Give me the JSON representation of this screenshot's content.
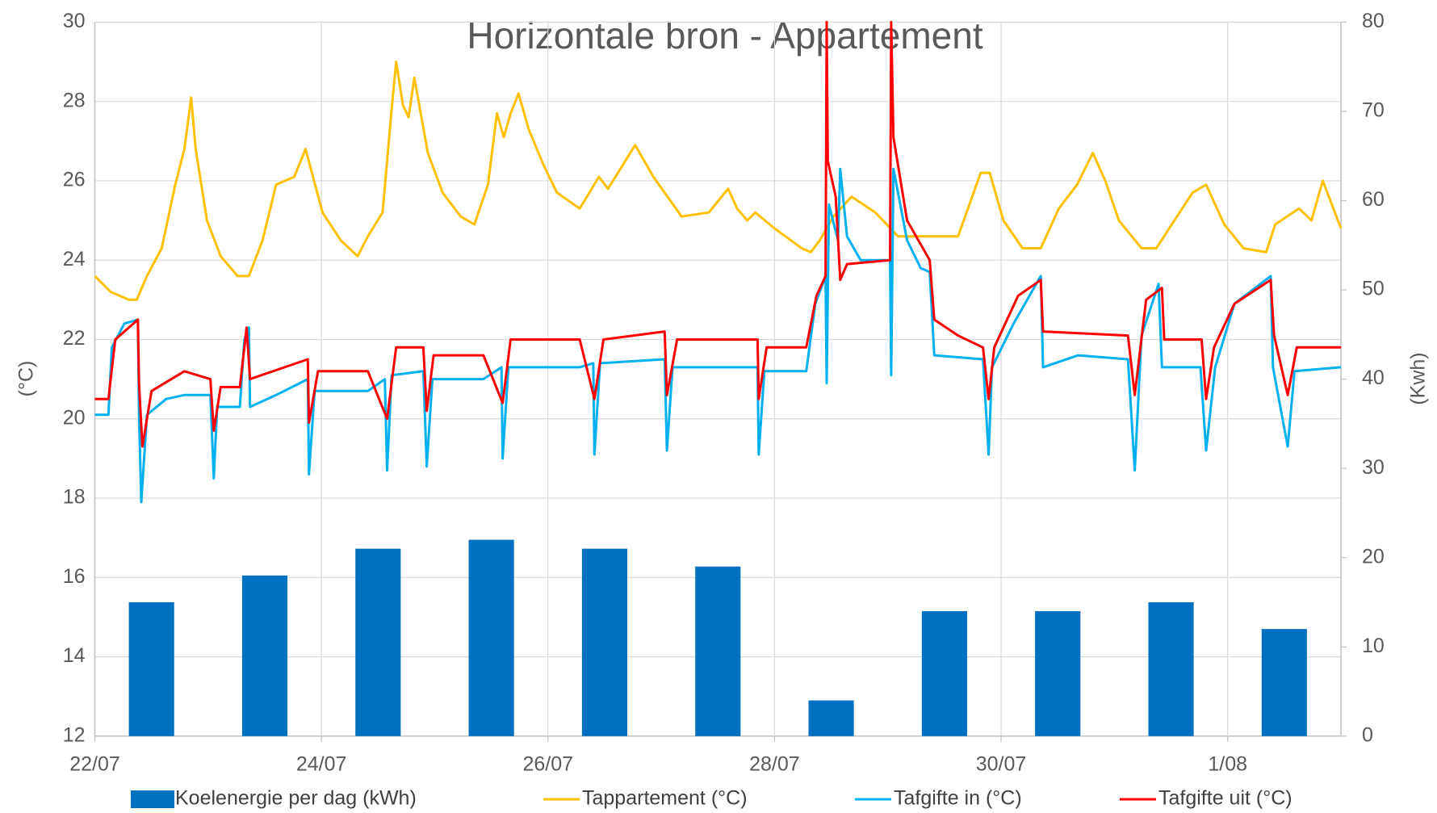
{
  "chart_data": {
    "type": "combo",
    "title": "Horizontale bron - Appartement",
    "ylabel": "(°C)",
    "y2label": "(Kwh)",
    "xlim": [
      0,
      11
    ],
    "xticks": [
      {
        "value": 0,
        "label": "22/07"
      },
      {
        "value": 2,
        "label": "24/07"
      },
      {
        "value": 4,
        "label": "26/07"
      },
      {
        "value": 6,
        "label": "28/07"
      },
      {
        "value": 8,
        "label": "30/07"
      },
      {
        "value": 10,
        "label": "1/08"
      }
    ],
    "ylim": [
      12,
      30
    ],
    "yticks": [
      12,
      14,
      16,
      18,
      20,
      22,
      24,
      26,
      28,
      30
    ],
    "y2lim": [
      0,
      80
    ],
    "y2ticks": [
      0,
      10,
      20,
      30,
      40,
      50,
      60,
      70,
      80
    ],
    "grid": true,
    "legend": "bottom",
    "series": [
      {
        "name": "Koelenergie per dag (kWh)",
        "type": "bar",
        "axis": "y2",
        "color": "#0070c0",
        "x": [
          0.5,
          1.5,
          2.5,
          3.5,
          4.5,
          5.5,
          6.5,
          7.5,
          8.5,
          9.5,
          10.5
        ],
        "values": [
          15,
          18,
          21,
          22,
          21,
          19,
          4,
          14,
          14,
          15,
          12
        ]
      },
      {
        "name": "Tappartement (°C)",
        "type": "line",
        "color": "#ffc000",
        "x": [
          0,
          0.14,
          0.3,
          0.37,
          0.46,
          0.59,
          0.71,
          0.79,
          0.85,
          0.89,
          0.99,
          1.11,
          1.26,
          1.36,
          1.48,
          1.6,
          1.76,
          1.86,
          2.01,
          2.17,
          2.32,
          2.41,
          2.54,
          2.62,
          2.66,
          2.72,
          2.77,
          2.82,
          2.94,
          3.07,
          3.23,
          3.35,
          3.47,
          3.55,
          3.61,
          3.67,
          3.74,
          3.83,
          3.96,
          4.08,
          4.28,
          4.45,
          4.53,
          4.77,
          4.93,
          5.18,
          5.42,
          5.59,
          5.67,
          5.76,
          5.83,
          6.0,
          6.24,
          6.32,
          6.4,
          6.52,
          6.68,
          6.89,
          7.09,
          7.37,
          7.62,
          7.82,
          7.9,
          8.02,
          8.19,
          8.35,
          8.51,
          8.67,
          8.81,
          8.92,
          9.04,
          9.24,
          9.37,
          9.53,
          9.69,
          9.81,
          9.97,
          10.14,
          10.34,
          10.42,
          10.63,
          10.74,
          10.84,
          11.0
        ],
        "values": [
          23.6,
          23.2,
          23.0,
          23.0,
          23.6,
          24.3,
          25.9,
          26.8,
          28.1,
          26.8,
          25.0,
          24.1,
          23.6,
          23.6,
          24.5,
          25.9,
          26.1,
          26.8,
          25.2,
          24.5,
          24.1,
          24.6,
          25.2,
          27.8,
          29.0,
          27.9,
          27.6,
          28.6,
          26.7,
          25.7,
          25.1,
          24.9,
          25.9,
          27.7,
          27.1,
          27.7,
          28.2,
          27.3,
          26.4,
          25.7,
          25.3,
          26.1,
          25.8,
          26.9,
          26.1,
          25.1,
          25.2,
          25.8,
          25.3,
          25.0,
          25.2,
          24.8,
          24.3,
          24.2,
          24.5,
          25.1,
          25.6,
          25.2,
          24.6,
          24.6,
          24.6,
          26.2,
          26.2,
          25.0,
          24.3,
          24.3,
          25.3,
          25.9,
          26.7,
          26.0,
          25.0,
          24.3,
          24.3,
          25.0,
          25.7,
          25.9,
          24.9,
          24.3,
          24.2,
          24.9,
          25.3,
          25.0,
          26.0,
          24.8
        ]
      },
      {
        "name": "Tafgifte in (°C)",
        "type": "line",
        "color": "#00b0f0",
        "x": [
          0,
          0.12,
          0.15,
          0.26,
          0.38,
          0.39,
          0.41,
          0.46,
          0.63,
          0.79,
          1.02,
          1.05,
          1.08,
          1.28,
          1.32,
          1.36,
          1.37,
          1.6,
          1.88,
          1.89,
          1.94,
          2.41,
          2.56,
          2.58,
          2.62,
          2.9,
          2.93,
          2.98,
          3.43,
          3.59,
          3.6,
          3.65,
          4.28,
          4.4,
          4.41,
          4.46,
          5.03,
          5.05,
          5.1,
          5.85,
          5.86,
          5.91,
          6.28,
          6.36,
          6.45,
          6.46,
          6.48,
          6.56,
          6.58,
          6.64,
          6.76,
          7.02,
          7.03,
          7.05,
          7.17,
          7.29,
          7.37,
          7.41,
          7.84,
          7.89,
          7.92,
          8.11,
          8.35,
          8.37,
          8.68,
          9.12,
          9.18,
          9.24,
          9.39,
          9.42,
          9.76,
          9.81,
          9.89,
          10.06,
          10.38,
          10.4,
          10.53,
          10.59,
          11.0
        ],
        "values": [
          20.1,
          20.1,
          21.8,
          22.4,
          22.5,
          20.1,
          17.9,
          20.1,
          20.5,
          20.6,
          20.6,
          18.5,
          20.3,
          20.3,
          22.0,
          22.3,
          20.3,
          20.6,
          21.0,
          18.6,
          20.7,
          20.7,
          21.0,
          18.7,
          21.1,
          21.2,
          18.8,
          21.0,
          21.0,
          21.3,
          19.0,
          21.3,
          21.3,
          21.4,
          19.1,
          21.4,
          21.5,
          19.2,
          21.3,
          21.3,
          19.1,
          21.2,
          21.2,
          22.9,
          23.6,
          20.9,
          25.4,
          24.5,
          26.3,
          24.6,
          24.0,
          24.0,
          21.1,
          26.3,
          24.5,
          23.8,
          23.7,
          21.6,
          21.5,
          19.1,
          21.3,
          22.4,
          23.6,
          21.3,
          21.6,
          21.5,
          18.7,
          22.1,
          23.4,
          21.3,
          21.3,
          19.2,
          21.3,
          22.9,
          23.6,
          21.3,
          19.3,
          21.2,
          21.3
        ]
      },
      {
        "name": "Tafgifte uit (°C)",
        "type": "line",
        "color": "#ff0000",
        "x": [
          0,
          0.12,
          0.18,
          0.38,
          0.39,
          0.42,
          0.5,
          0.79,
          1.02,
          1.05,
          1.11,
          1.28,
          1.34,
          1.37,
          1.88,
          1.89,
          1.97,
          2.41,
          2.58,
          2.66,
          2.9,
          2.93,
          2.99,
          3.43,
          3.6,
          3.67,
          4.28,
          4.41,
          4.49,
          5.03,
          5.05,
          5.14,
          5.85,
          5.86,
          5.93,
          6.28,
          6.37,
          6.45,
          6.46,
          6.47,
          6.54,
          6.58,
          6.64,
          7.02,
          7.03,
          7.05,
          7.17,
          7.37,
          7.41,
          7.62,
          7.84,
          7.89,
          7.94,
          8.15,
          8.35,
          8.37,
          9.12,
          9.18,
          9.28,
          9.42,
          9.44,
          9.77,
          9.81,
          9.88,
          10.06,
          10.38,
          10.41,
          10.53,
          10.61,
          11.0
        ],
        "values": [
          20.5,
          20.5,
          22.0,
          22.5,
          20.9,
          19.3,
          20.7,
          21.2,
          21.0,
          19.7,
          20.8,
          20.8,
          22.3,
          21.0,
          21.5,
          19.9,
          21.2,
          21.2,
          20.0,
          21.8,
          21.8,
          20.2,
          21.6,
          21.6,
          20.4,
          22.0,
          22.0,
          20.5,
          22.0,
          22.2,
          20.6,
          22.0,
          22.0,
          20.5,
          21.8,
          21.8,
          23.1,
          23.6,
          30,
          26.5,
          25.6,
          23.5,
          23.9,
          24.0,
          30,
          27.1,
          25.0,
          24.0,
          22.5,
          22.1,
          21.8,
          20.5,
          21.8,
          23.1,
          23.5,
          22.2,
          22.1,
          20.6,
          23.0,
          23.3,
          22.0,
          22.0,
          20.5,
          21.8,
          22.9,
          23.5,
          22.1,
          20.6,
          21.8,
          21.8
        ]
      }
    ]
  }
}
